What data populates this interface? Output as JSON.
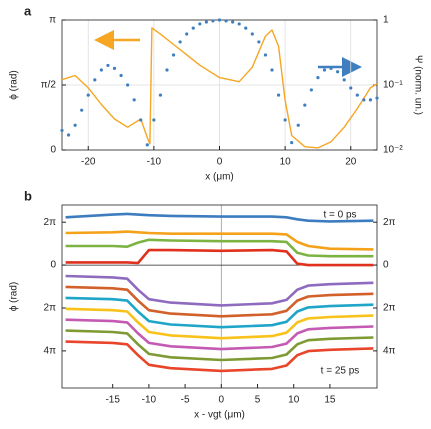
{
  "chart_data": [
    {
      "type": "line",
      "panel": "a",
      "xlabel": "x (μm)",
      "ylabel": "ϕ (rad)",
      "y2label": "Ψ (norm. un.)",
      "xlim": [
        -24,
        24
      ],
      "xticks": [
        -20,
        -10,
        0,
        10,
        20
      ],
      "ylim": [
        0,
        3.1416
      ],
      "yticks": [
        {
          "value": 0,
          "label": "0"
        },
        {
          "value": 1.5708,
          "label": "π/2"
        },
        {
          "value": 3.1416,
          "label": "π"
        }
      ],
      "y2lim": [
        0.01,
        1
      ],
      "y2scale": "log",
      "y2ticks": [
        {
          "value": 0.01,
          "label": "10⁻²"
        },
        {
          "value": 0.1,
          "label": "10⁻¹"
        },
        1
      ],
      "grid": true,
      "series": [
        {
          "color": "#f5a623",
          "mode": "line",
          "x": [
            -24,
            -22,
            -20,
            -18,
            -16,
            -14,
            -12,
            -11,
            -10.6,
            -10.3,
            -9,
            -7,
            -5,
            -3,
            0,
            3,
            5,
            7,
            8,
            9,
            10,
            11,
            13,
            15,
            17,
            19,
            21,
            23,
            24
          ],
          "values": [
            1.7,
            1.8,
            1.5,
            1.1,
            0.75,
            0.55,
            0.75,
            0.3,
            0.15,
            2.95,
            2.8,
            2.55,
            2.3,
            2.05,
            1.75,
            1.65,
            2.0,
            2.75,
            2.9,
            2.5,
            1.2,
            0.35,
            0.08,
            0.05,
            0.2,
            0.55,
            1.0,
            1.5,
            1.6
          ]
        },
        {
          "color": "#3f7fc0",
          "mode": "markers",
          "axis": "y2",
          "x": [
            -24,
            -23,
            -22,
            -21,
            -20,
            -19,
            -18,
            -17,
            -16,
            -15,
            -14,
            -13,
            -12,
            -11,
            -10,
            -9,
            -8,
            -7,
            -6,
            -5,
            -4,
            -3,
            -2,
            -1,
            0,
            1,
            2,
            3,
            4,
            5,
            6,
            7,
            8,
            9,
            10,
            11,
            12,
            13,
            14,
            15,
            16,
            17,
            18,
            19,
            20,
            21,
            22,
            23,
            24
          ],
          "values": [
            0.02,
            0.017,
            0.024,
            0.041,
            0.07,
            0.12,
            0.17,
            0.2,
            0.18,
            0.14,
            0.1,
            0.059,
            0.029,
            0.012,
            0.029,
            0.07,
            0.17,
            0.29,
            0.46,
            0.61,
            0.75,
            0.87,
            0.93,
            0.97,
            1.0,
            0.97,
            0.93,
            0.87,
            0.75,
            0.61,
            0.46,
            0.29,
            0.17,
            0.07,
            0.029,
            0.013,
            0.024,
            0.049,
            0.084,
            0.13,
            0.17,
            0.18,
            0.16,
            0.12,
            0.09,
            0.07,
            0.059,
            0.059,
            0.063
          ]
        }
      ]
    },
    {
      "type": "line",
      "panel": "b",
      "xlabel": "x - vgt (μm)",
      "ylabel": "ϕ (rad)",
      "xlim": [
        -22,
        21.5
      ],
      "xticks": [
        -15,
        -10,
        -5,
        0,
        5,
        10,
        15
      ],
      "ylim": [
        -8.8,
        18
      ],
      "y_inverted": true,
      "yticks": [
        {
          "value": -6.283,
          "label": "2π"
        },
        0,
        {
          "value": 6.283,
          "label": "2π"
        },
        {
          "value": 12.566,
          "label": "4π"
        }
      ],
      "y2ticks": [
        {
          "value": -6.283,
          "label": "2π"
        },
        0,
        {
          "value": 6.283,
          "label": "2π"
        },
        {
          "value": 12.566,
          "label": "4π"
        }
      ],
      "zero_lines": true,
      "annotations": [
        "t = 0 ps",
        "t = 25 ps"
      ],
      "series": [
        {
          "color": "#3d7dbf",
          "x": [
            -21.5,
            -15,
            -13,
            -11.5,
            -10,
            -7,
            0,
            7,
            9,
            10.5,
            12,
            15,
            21
          ],
          "values": [
            -7.0,
            -7.4,
            -7.5,
            -7.4,
            -7.3,
            -7.2,
            -7.1,
            -7.1,
            -7.0,
            -6.7,
            -6.5,
            -6.4,
            -6.5
          ]
        },
        {
          "color": "#f5a21b",
          "x": [
            -21.5,
            -15,
            -13,
            -11.5,
            -10,
            -7,
            0,
            7,
            9,
            10.5,
            12,
            15,
            21
          ],
          "values": [
            -4.7,
            -4.8,
            -4.9,
            -4.8,
            -4.7,
            -4.6,
            -4.6,
            -4.6,
            -4.5,
            -3.4,
            -2.8,
            -2.4,
            -2.3
          ]
        },
        {
          "color": "#7cb342",
          "x": [
            -21.5,
            -15,
            -13,
            -11.5,
            -10,
            -7,
            0,
            7,
            9,
            10.5,
            12,
            15,
            21
          ],
          "values": [
            -2.8,
            -2.8,
            -2.7,
            -3.3,
            -3.7,
            -3.6,
            -3.5,
            -3.5,
            -3.4,
            -1.8,
            -1.4,
            -1.3,
            -1.3
          ]
        },
        {
          "color": "#e0301e",
          "x": [
            -21.5,
            -15,
            -13,
            -11.5,
            -10,
            -7,
            0,
            7,
            9,
            10.5,
            12,
            15,
            21
          ],
          "values": [
            -0.4,
            -0.4,
            -0.4,
            -0.3,
            -2.2,
            -2.2,
            -2.1,
            -2.2,
            -2.0,
            -0.2,
            0,
            0,
            0
          ]
        },
        {
          "color": "#8e6bbf",
          "x": [
            -21.5,
            -15,
            -13,
            -11.5,
            -10,
            -7,
            0,
            7,
            9,
            10.5,
            12,
            15,
            21
          ],
          "values": [
            1.6,
            1.8,
            2.0,
            3.6,
            5.0,
            5.5,
            5.9,
            5.6,
            5.1,
            3.6,
            3.0,
            2.8,
            2.6
          ]
        },
        {
          "color": "#d2602a",
          "x": [
            -21.5,
            -15,
            -13,
            -11.5,
            -10,
            -7,
            0,
            7,
            9,
            10.5,
            12,
            15,
            21
          ],
          "values": [
            3.2,
            3.4,
            3.6,
            5.2,
            6.6,
            7.1,
            7.5,
            7.2,
            6.7,
            5.2,
            4.6,
            4.4,
            4.2
          ]
        },
        {
          "color": "#1ea5c8",
          "x": [
            -21.5,
            -15,
            -13,
            -11.5,
            -10,
            -7,
            0,
            7,
            9,
            10.5,
            12,
            15,
            21
          ],
          "values": [
            4.8,
            5.0,
            5.2,
            6.8,
            8.2,
            8.7,
            9.1,
            8.8,
            8.3,
            6.8,
            6.2,
            6.0,
            5.8
          ]
        },
        {
          "color": "#f8c21a",
          "x": [
            -21.5,
            -15,
            -13,
            -11.5,
            -10,
            -7,
            0,
            7,
            9,
            10.5,
            12,
            15,
            21
          ],
          "values": [
            6.4,
            6.6,
            6.8,
            8.4,
            9.8,
            10.3,
            10.7,
            10.4,
            9.9,
            8.4,
            7.8,
            7.6,
            7.4
          ]
        },
        {
          "color": "#c45ab3",
          "x": [
            -21.5,
            -15,
            -13,
            -11.5,
            -10,
            -7,
            0,
            7,
            9,
            10.5,
            12,
            15,
            21
          ],
          "values": [
            8.0,
            8.2,
            8.4,
            10.0,
            11.4,
            11.9,
            12.3,
            12.0,
            11.5,
            10.0,
            9.4,
            9.2,
            9.0
          ]
        },
        {
          "color": "#7e9a33",
          "x": [
            -21.5,
            -15,
            -13,
            -11.5,
            -10,
            -7,
            0,
            7,
            9,
            10.5,
            12,
            15,
            21
          ],
          "values": [
            9.6,
            9.8,
            10.0,
            11.6,
            13.0,
            13.5,
            13.9,
            13.6,
            13.1,
            11.6,
            11.0,
            10.8,
            10.6
          ]
        },
        {
          "color": "#e8452a",
          "x": [
            -21.5,
            -15,
            -13,
            -11.5,
            -10,
            -7,
            0,
            7,
            9,
            10.5,
            12,
            15,
            21
          ],
          "values": [
            11.2,
            11.4,
            11.6,
            13.2,
            14.6,
            15.1,
            15.5,
            15.2,
            14.7,
            13.2,
            12.6,
            12.4,
            12.2
          ]
        }
      ]
    }
  ]
}
